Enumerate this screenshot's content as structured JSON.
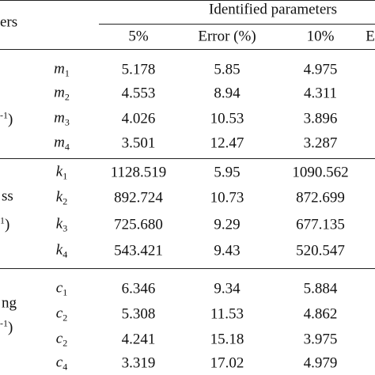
{
  "header": {
    "stub": "ers",
    "group": "Identified parameters",
    "columns": [
      "5%",
      "Error (%)",
      "10%",
      "E"
    ]
  },
  "groups": [
    {
      "label": [
        {
          "text": "",
          "sup": "-1",
          "tail": ")"
        }
      ],
      "rows": [
        {
          "symbol": "m",
          "sub": "1",
          "cells": [
            "5.178",
            "5.85",
            "4.975"
          ]
        },
        {
          "symbol": "m",
          "sub": "2",
          "cells": [
            "4.553",
            "8.94",
            "4.311"
          ]
        },
        {
          "symbol": "m",
          "sub": "3",
          "cells": [
            "4.026",
            "10.53",
            "3.896"
          ]
        },
        {
          "symbol": "m",
          "sub": "4",
          "cells": [
            "3.501",
            "12.47",
            "3.287"
          ]
        }
      ]
    },
    {
      "label": [
        {
          "text": "ss"
        },
        {
          "text": "",
          "sup": "1",
          "tail": ")"
        }
      ],
      "rows": [
        {
          "symbol": "k",
          "sub": "1",
          "cells": [
            "1128.519",
            "5.95",
            "1090.562"
          ]
        },
        {
          "symbol": "k",
          "sub": "2",
          "cells": [
            "892.724",
            "10.73",
            "872.699"
          ]
        },
        {
          "symbol": "k",
          "sub": "3",
          "cells": [
            "725.680",
            "9.29",
            "677.135"
          ]
        },
        {
          "symbol": "k",
          "sub": "4",
          "cells": [
            "543.421",
            "9.43",
            "520.547"
          ]
        }
      ]
    },
    {
      "label": [
        {
          "text": "ng"
        },
        {
          "text": "",
          "sup": "-1",
          "tail": ")"
        }
      ],
      "rows": [
        {
          "symbol": "c",
          "sub": "1",
          "cells": [
            "6.346",
            "9.34",
            "5.884"
          ]
        },
        {
          "symbol": "c",
          "sub": "2",
          "cells": [
            "5.308",
            "11.53",
            "4.862"
          ]
        },
        {
          "symbol": "c",
          "sub": "2",
          "cells": [
            "4.241",
            "15.18",
            "3.975"
          ]
        },
        {
          "symbol": "c",
          "sub": "4",
          "cells": [
            "3.319",
            "17.02",
            "4.979"
          ]
        }
      ]
    }
  ]
}
